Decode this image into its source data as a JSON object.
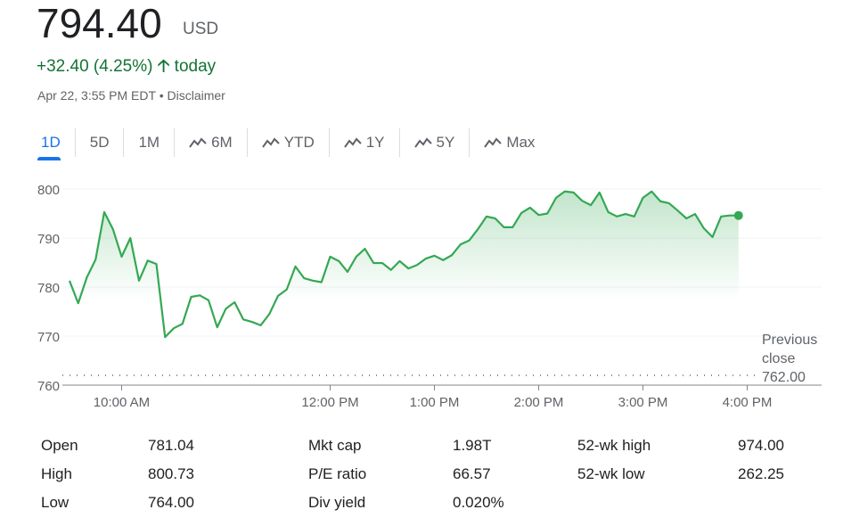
{
  "header": {
    "price": "794.40",
    "currency": "USD",
    "change": "+32.40 (4.25%)",
    "change_suffix": "today",
    "timestamp": "Apr 22, 3:55 PM EDT",
    "disclaimer": "Disclaimer"
  },
  "tabs": [
    {
      "label": "1D",
      "icon": false
    },
    {
      "label": "5D",
      "icon": false
    },
    {
      "label": "1M",
      "icon": false
    },
    {
      "label": "6M",
      "icon": true
    },
    {
      "label": "YTD",
      "icon": true
    },
    {
      "label": "1Y",
      "icon": true
    },
    {
      "label": "5Y",
      "icon": true
    },
    {
      "label": "Max",
      "icon": true
    }
  ],
  "colors": {
    "line": "#34a853",
    "up": "#137333",
    "accent": "#1a73e8"
  },
  "chart_data": {
    "type": "line",
    "title": "",
    "interval_minutes": 5,
    "start": "9:30 AM",
    "ylim": [
      760,
      800
    ],
    "yticks": [
      "800",
      "790",
      "780",
      "770",
      "760"
    ],
    "xticks": [
      "10:00 AM",
      "12:00 PM",
      "1:00 PM",
      "2:00 PM",
      "3:00 PM",
      "4:00 PM"
    ],
    "previous_close": {
      "label1": "Previous",
      "label2": "close",
      "value": "762.00",
      "num": 762
    },
    "values": [
      781.3,
      776.7,
      782,
      785.6,
      795.3,
      791.8,
      786.2,
      790,
      781.3,
      785.4,
      784.7,
      769.8,
      771.6,
      772.5,
      778,
      778.3,
      777.3,
      771.8,
      775.6,
      776.9,
      773.4,
      772.9,
      772.2,
      774.5,
      778.2,
      779.5,
      784.2,
      781.8,
      781.3,
      781,
      786.2,
      785.3,
      783.1,
      786.2,
      787.8,
      784.9,
      784.9,
      783.5,
      785.3,
      783.8,
      784.5,
      785.8,
      786.4,
      785.5,
      786.5,
      788.7,
      789.5,
      791.8,
      794.4,
      794,
      792.2,
      792.2,
      795.1,
      796.2,
      794.7,
      795,
      798.2,
      799.5,
      799.3,
      797.6,
      796.7,
      799.3,
      795.3,
      794.4,
      794.9,
      794.4,
      798.2,
      799.5,
      797.5,
      797.1,
      795.6,
      794,
      794.9,
      792,
      790.2,
      794.4,
      794.6,
      794.6
    ]
  },
  "stats": [
    {
      "label": "Open",
      "value": "781.04"
    },
    {
      "label": "High",
      "value": "800.73"
    },
    {
      "label": "Low",
      "value": "764.00"
    },
    {
      "label": "Mkt cap",
      "value": "1.98T"
    },
    {
      "label": "P/E ratio",
      "value": "66.57"
    },
    {
      "label": "Div yield",
      "value": "0.020%"
    },
    {
      "label": "52-wk high",
      "value": "974.00"
    },
    {
      "label": "52-wk low",
      "value": "262.25"
    }
  ]
}
